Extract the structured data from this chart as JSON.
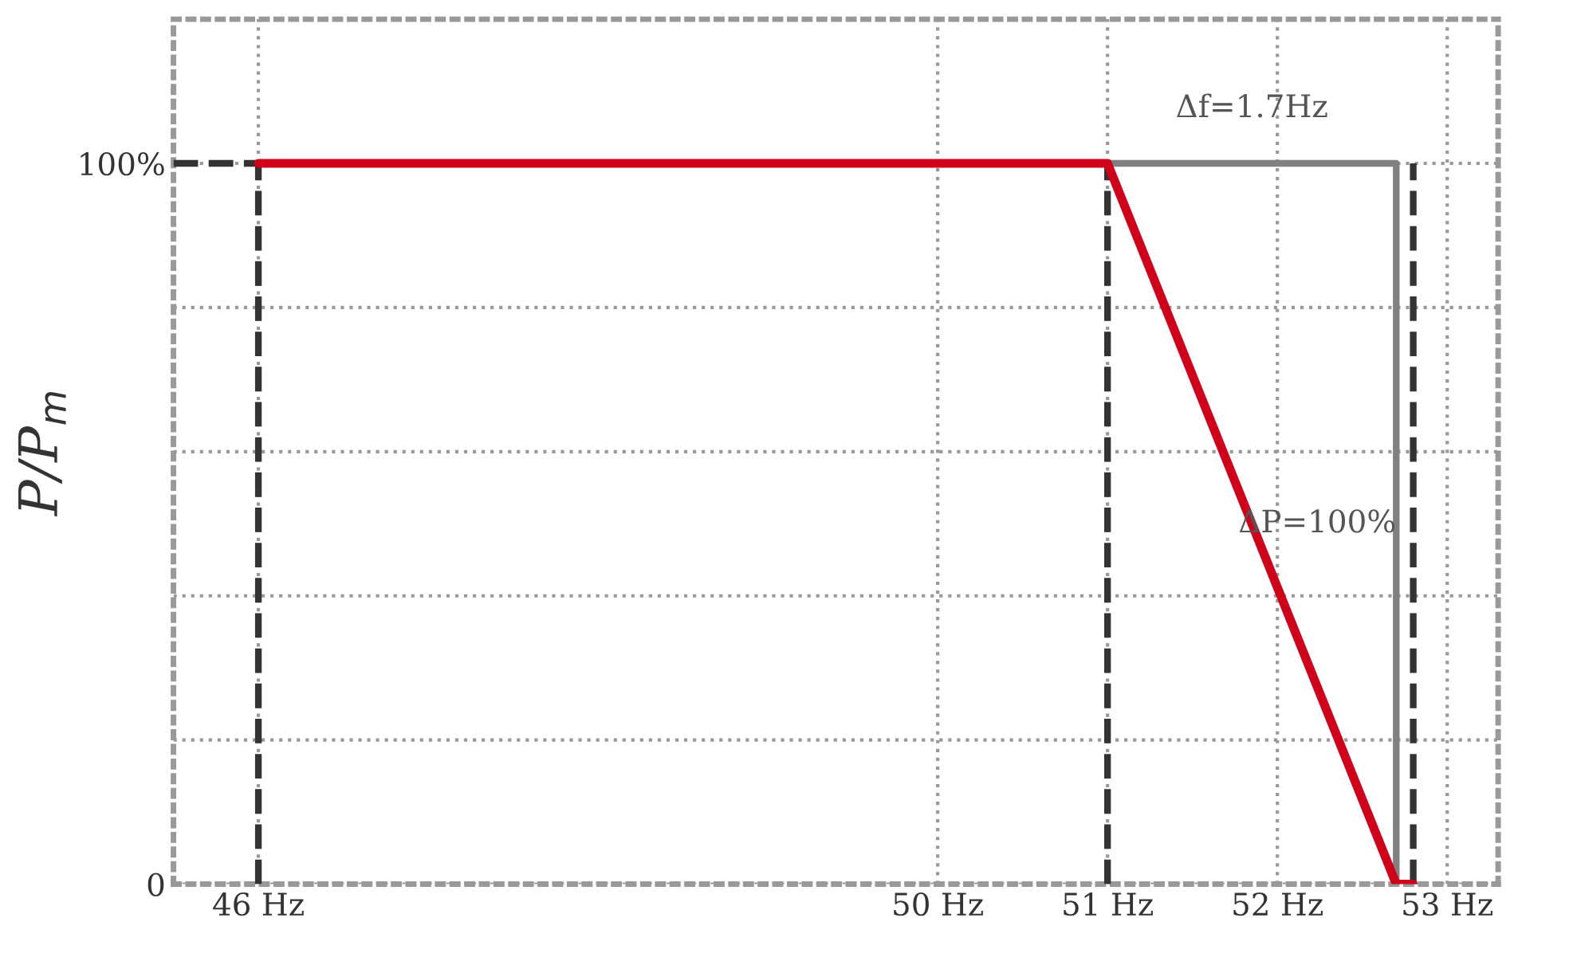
{
  "chart_data": {
    "type": "line",
    "ylabel": "P/P$_{m}$",
    "xlim": [
      45.5,
      53.3
    ],
    "xticks": [
      {
        "value": 46,
        "label": "46 Hz"
      },
      {
        "value": 50,
        "label": "50 Hz"
      },
      {
        "value": 51,
        "label": "51 Hz"
      },
      {
        "value": 52,
        "label": "52 Hz"
      },
      {
        "value": 53,
        "label": "53 Hz"
      }
    ],
    "ylim": [
      0,
      120
    ],
    "yticks": [
      0,
      {
        "value": 20,
        "label": null
      },
      {
        "value": 40,
        "label": null
      },
      {
        "value": 60,
        "label": null
      },
      {
        "value": 80,
        "label": null
      },
      {
        "value": 100,
        "label": "100%"
      }
    ],
    "grid": true,
    "marker": "none",
    "legend": false,
    "series": [
      {
        "color": "#333333",
        "line_style": "dashed",
        "x": [
          45.5,
          46
        ],
        "values": [
          100,
          100
        ]
      },
      {
        "color": "#333333",
        "line_style": "dashed",
        "x": [
          46,
          46
        ],
        "values": [
          0,
          100
        ]
      },
      {
        "color": "#333333",
        "line_style": "dashed",
        "x": [
          51,
          51
        ],
        "values": [
          0,
          100
        ]
      },
      {
        "color": "#333333",
        "line_style": "dashed",
        "x": [
          52.8,
          52.8
        ],
        "values": [
          0,
          100
        ]
      },
      {
        "color": "#808080",
        "line_style": "solid",
        "x": [
          51,
          52.7,
          52.7
        ],
        "values": [
          100,
          100,
          0
        ]
      },
      {
        "color": "#d0021b",
        "line_style": "solid",
        "x": [
          46,
          51,
          52.7,
          52.8
        ],
        "values": [
          100,
          100,
          0,
          0
        ]
      }
    ],
    "annotations": [
      {
        "text": "Δf=1.7Hz",
        "x": 51.85,
        "y": 100
      },
      {
        "text": "ΔP=100%",
        "x": 52.7,
        "y": 50
      }
    ]
  }
}
